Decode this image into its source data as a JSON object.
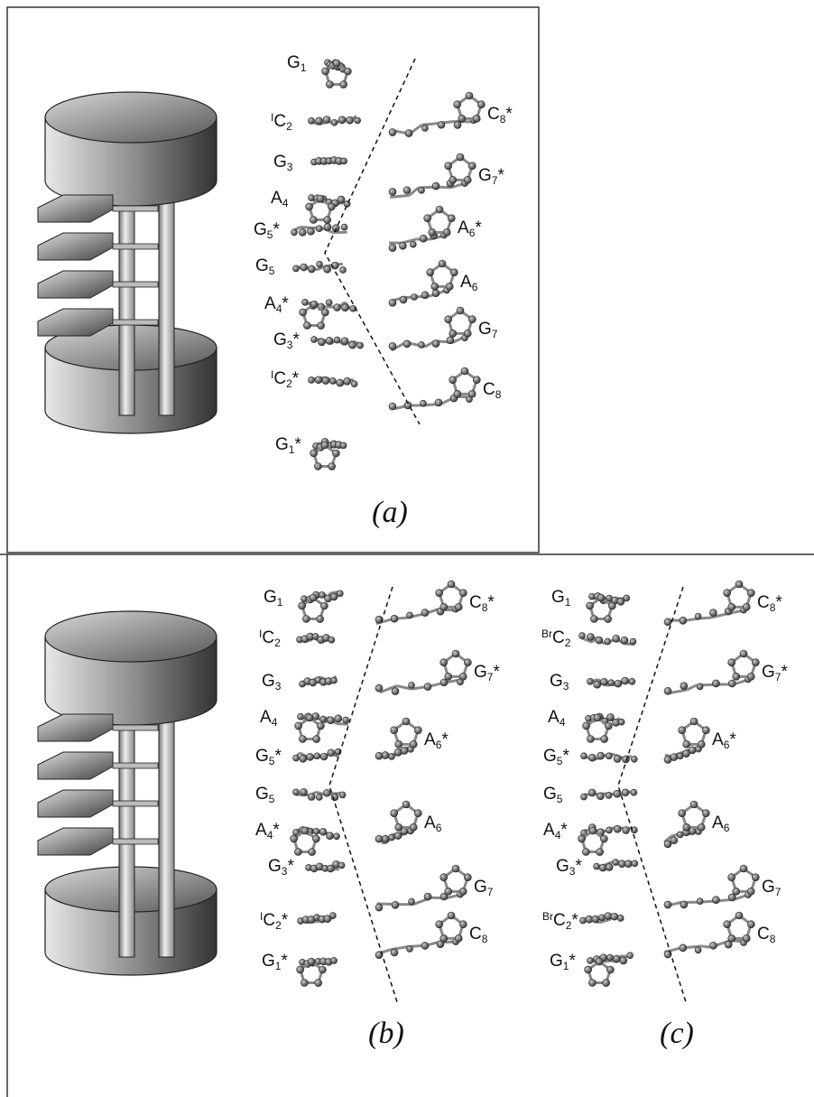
{
  "panels": [
    {
      "caption": "(a)",
      "labels": [
        {
          "base": "G",
          "sub": "1"
        },
        {
          "pre": "I",
          "base": "C",
          "sub": "2"
        },
        {
          "base": "G",
          "sub": "3"
        },
        {
          "base": "A",
          "sub": "4"
        },
        {
          "base": "G",
          "sub": "5",
          "star": "*"
        },
        {
          "base": "G",
          "sub": "5"
        },
        {
          "base": "A",
          "sub": "4",
          "star": "*"
        },
        {
          "base": "G",
          "sub": "3",
          "star": "*"
        },
        {
          "pre": "I",
          "base": "C",
          "sub": "2",
          "star": "*"
        },
        {
          "base": "G",
          "sub": "1",
          "star": "*"
        },
        {
          "base": "C",
          "sub": "8",
          "star": "*"
        },
        {
          "base": "G",
          "sub": "7",
          "star": "*"
        },
        {
          "base": "A",
          "sub": "6",
          "star": "*"
        },
        {
          "base": "A",
          "sub": "6"
        },
        {
          "base": "G",
          "sub": "7"
        },
        {
          "base": "C",
          "sub": "8"
        }
      ]
    },
    {
      "caption": "(b)",
      "labels": [
        {
          "base": "G",
          "sub": "1"
        },
        {
          "pre": "I",
          "base": "C",
          "sub": "2"
        },
        {
          "base": "G",
          "sub": "3"
        },
        {
          "base": "A",
          "sub": "4"
        },
        {
          "base": "G",
          "sub": "5",
          "star": "*"
        },
        {
          "base": "G",
          "sub": "5"
        },
        {
          "base": "A",
          "sub": "4",
          "star": "*"
        },
        {
          "base": "G",
          "sub": "3",
          "star": "*"
        },
        {
          "pre": "I",
          "base": "C",
          "sub": "2",
          "star": "*"
        },
        {
          "base": "G",
          "sub": "1",
          "star": "*"
        },
        {
          "base": "C",
          "sub": "8",
          "star": "*"
        },
        {
          "base": "G",
          "sub": "7",
          "star": "*"
        },
        {
          "base": "A",
          "sub": "6",
          "star": "*"
        },
        {
          "base": "A",
          "sub": "6"
        },
        {
          "base": "G",
          "sub": "7"
        },
        {
          "base": "C",
          "sub": "8"
        }
      ]
    },
    {
      "caption": "(c)",
      "labels": [
        {
          "base": "G",
          "sub": "1"
        },
        {
          "pre": "Br",
          "base": "C",
          "sub": "2"
        },
        {
          "base": "G",
          "sub": "3"
        },
        {
          "base": "A",
          "sub": "4"
        },
        {
          "base": "G",
          "sub": "5",
          "star": "*"
        },
        {
          "base": "G",
          "sub": "5"
        },
        {
          "base": "A",
          "sub": "4",
          "star": "*"
        },
        {
          "base": "G",
          "sub": "3",
          "star": "*"
        },
        {
          "pre": "Br",
          "base": "C",
          "sub": "2",
          "star": "*"
        },
        {
          "base": "G",
          "sub": "1",
          "star": "*"
        },
        {
          "base": "C",
          "sub": "8",
          "star": "*"
        },
        {
          "base": "G",
          "sub": "7",
          "star": "*"
        },
        {
          "base": "A",
          "sub": "6",
          "star": "*"
        },
        {
          "base": "A",
          "sub": "6"
        },
        {
          "base": "G",
          "sub": "7"
        },
        {
          "base": "C",
          "sub": "8"
        }
      ]
    }
  ]
}
